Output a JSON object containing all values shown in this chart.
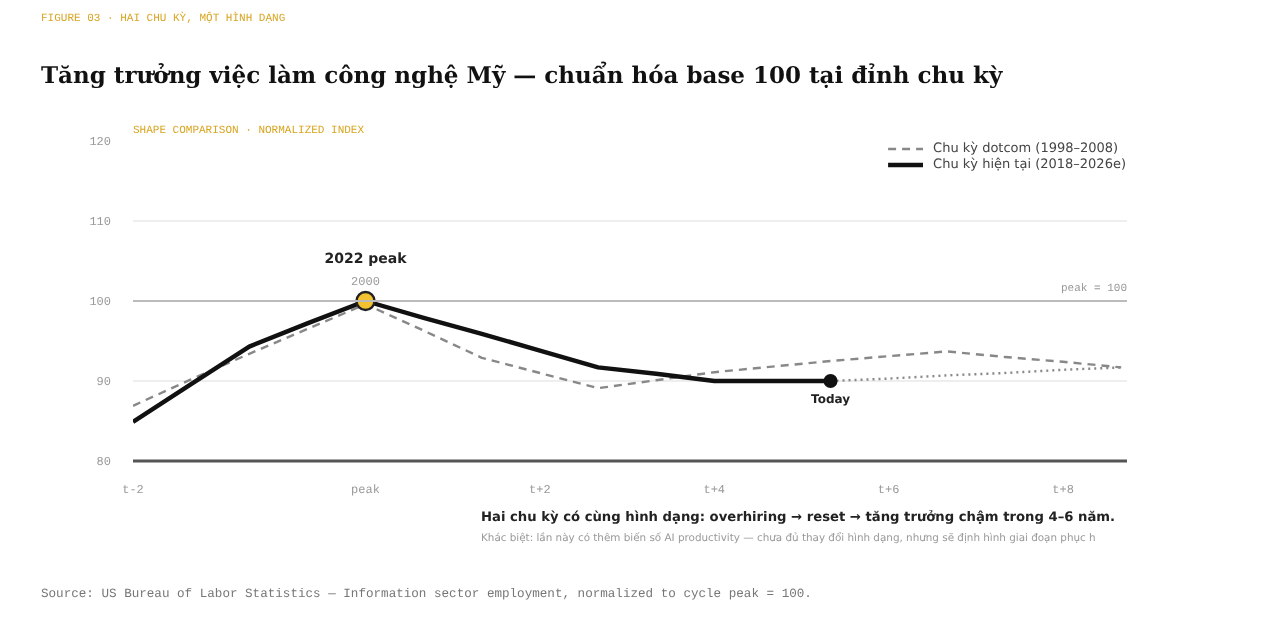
{
  "chart_data": {
    "type": "line",
    "title": "Tăng trưởng việc làm công nghệ Mỹ — chuẩn hóa base 100 tại đỉnh chu kỳ",
    "subtitle": "SHAPE COMPARISON · NORMALIZED INDEX",
    "categories": [
      "t-2",
      null,
      null,
      null,
      "peak",
      null,
      null,
      "t+2",
      null,
      null,
      "t+4",
      null,
      null,
      "t+6",
      null,
      null,
      "t+8",
      null
    ],
    "ylim": [
      80,
      120
    ],
    "yticks": [
      80,
      90,
      100,
      110,
      120
    ],
    "grid": "y",
    "legend": "top right",
    "series": [
      {
        "name": "Chu kỳ dotcom (1998–2008)",
        "color": "#888888",
        "line_style": "dashed",
        "values": [
          86.9,
          90.2,
          93.4,
          96.5,
          99.6,
          96.3,
          92.9,
          91.0,
          89.1,
          90.1,
          91.1,
          91.8,
          92.5,
          93.1,
          93.7,
          93.0,
          92.4,
          91.7
        ]
      },
      {
        "name": "Chu kỳ hiện tại (2018–2026e)",
        "color": "#111111",
        "line_style": "solid",
        "values": [
          84.9,
          89.6,
          94.3,
          97.2,
          100,
          97.9,
          95.9,
          93.8,
          91.7,
          90.9,
          90,
          90,
          90,
          null,
          null,
          null,
          null,
          null
        ]
      },
      {
        "color": "#888888",
        "line_style": "dotted",
        "values": [
          null,
          null,
          null,
          null,
          null,
          null,
          null,
          null,
          null,
          null,
          null,
          null,
          90,
          90.3,
          90.7,
          91.0,
          91.4,
          91.7
        ]
      }
    ],
    "ref_lines": [
      {
        "axis": "y",
        "value": 100,
        "label": "peak = 100",
        "color": "#bbbbbb"
      }
    ],
    "annotations": [
      {
        "text": "2022 peak",
        "x": "peak",
        "y": 100
      },
      {
        "text": "2000",
        "x": "peak",
        "y": 100
      },
      {
        "text": "Today",
        "y": 90
      },
      "FIGURE 03 · HAI CHU KỲ, MỘT HÌNH DẠNG",
      "Hai chu kỳ có cùng hình dạng: overhiring → reset → tăng trưởng chậm trong 4–6 năm.",
      "Khác biệt: lần này có thêm biến số AI productivity — chưa đủ thay đổi hình dạng, nhưng sẽ định hình giai đoạn phục h",
      "Source: US Bureau of Labor Statistics — Information sector employment, normalized to cycle peak = 100."
    ]
  }
}
